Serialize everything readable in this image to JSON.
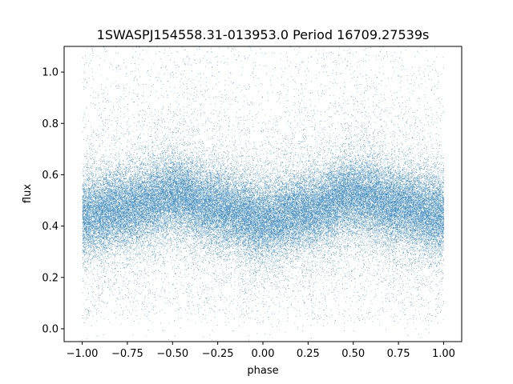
{
  "chart_data": {
    "type": "scatter",
    "title": "1SWASPJ154558.31-013953.0 Period 16709.27539s",
    "xlabel": "phase",
    "ylabel": "flux",
    "xlim": [
      -1.1,
      1.1
    ],
    "ylim": [
      -0.05,
      1.1
    ],
    "x_ticks": [
      -1.0,
      -0.75,
      -0.5,
      -0.25,
      0.0,
      0.25,
      0.5,
      0.75,
      1.0
    ],
    "x_tick_labels": [
      "−1.00",
      "−0.75",
      "−0.50",
      "−0.25",
      "0.00",
      "0.25",
      "0.50",
      "0.75",
      "1.00"
    ],
    "y_ticks": [
      0.0,
      0.2,
      0.4,
      0.6,
      0.8,
      1.0
    ],
    "y_tick_labels": [
      "0.0",
      "0.2",
      "0.4",
      "0.6",
      "0.8",
      "1.0"
    ],
    "grid": false,
    "marker_color": "#1f77b4",
    "series": [
      {
        "name": "",
        "x_range": [
          -1.0,
          1.0
        ],
        "mean_flux_at_phase": [
          {
            "x": -1.0,
            "y": 0.44
          },
          {
            "x": -0.75,
            "y": 0.47
          },
          {
            "x": -0.5,
            "y": 0.52
          },
          {
            "x": -0.25,
            "y": 0.47
          },
          {
            "x": 0.0,
            "y": 0.42
          },
          {
            "x": 0.25,
            "y": 0.46
          },
          {
            "x": 0.5,
            "y": 0.52
          },
          {
            "x": 0.75,
            "y": 0.48
          },
          {
            "x": 1.0,
            "y": 0.44
          }
        ],
        "scatter_std": 0.1,
        "point_count": 60000
      }
    ]
  }
}
